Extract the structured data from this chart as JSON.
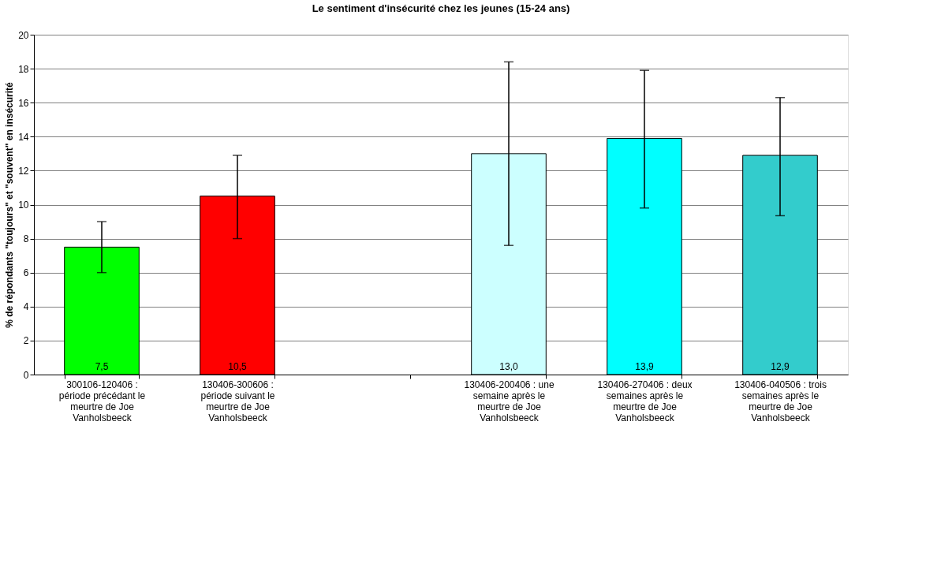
{
  "chart_data": {
    "type": "bar",
    "title": "Le sentiment d'insécurité chez les jeunes (15-24 ans)",
    "ylabel": "% de répondants \"toujours\" et \"souvent\" en insécurité",
    "categories": [
      "300106-120406 : période précédant le meurtre de Joe Vanholsbeeck",
      "130406-300606 : période suivant le meurtre de Joe Vanholsbeeck",
      null,
      "130406-200406 : une semaine après le meurtre de Joe Vanholsbeeck",
      "130406-270406 : deux semaines après le meurtre de Joe Vanholsbeeck",
      "130406-040506 : trois semaines après le meurtre de Joe Vanholsbeeck"
    ],
    "values": [
      7.5,
      10.5,
      null,
      13.0,
      13.9,
      12.9
    ],
    "colors": [
      "#00ff00",
      "#ff0000",
      "#ffffff",
      "#ccffff",
      "#00ffff",
      "#33cccc"
    ],
    "errors": [
      [
        6.0,
        9.0
      ],
      [
        8.0,
        12.9
      ],
      null,
      [
        7.6,
        18.4
      ],
      [
        9.8,
        17.9
      ],
      [
        9.35,
        16.3
      ]
    ],
    "value_labels": [
      "7,5",
      "10,5",
      null,
      "13,0",
      "13,9",
      "12,9"
    ],
    "ylim": [
      0,
      20
    ],
    "yticks": [
      0,
      2,
      4,
      6,
      8,
      10,
      12,
      14,
      16,
      18,
      20
    ],
    "grid": "y"
  }
}
